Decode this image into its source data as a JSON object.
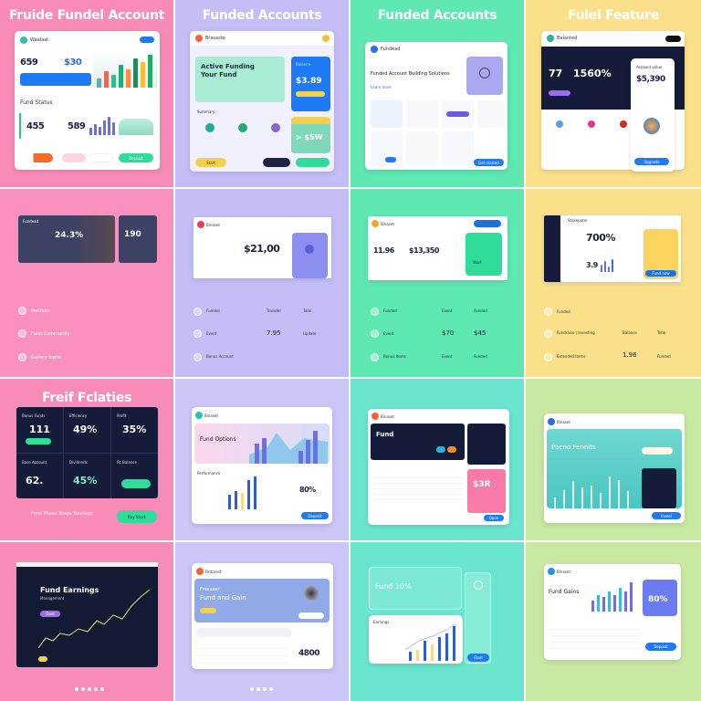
{
  "colors": {
    "pink": "#f98bb9",
    "lavender": "#c4bef7",
    "mint": "#5fe8b2",
    "yellow": "#fbe08c",
    "teal": "#6ae6cf",
    "lime": "#c9e8a2",
    "navy": "#141c3a",
    "blue": "#1f7bf5"
  },
  "t1": {
    "title": "Fruide Fundel Account",
    "brand": "Waalaat",
    "v1": "659",
    "v2": "$30",
    "section": "Fund Status",
    "s1": "455",
    "s2": "589",
    "btn": "Deposit"
  },
  "t2": {
    "title": "Funded Accounts",
    "brand": "Brasacte",
    "hero1": "Active Funding",
    "hero2": "Your Fund",
    "blue_label": "Balance",
    "blue_value": "$3.89",
    "green_value": "> $5W",
    "section": "Summary",
    "btn": "Start"
  },
  "t3": {
    "title": "Funded Accounts",
    "brand": "Fundead",
    "heading": "Funded Account Building Solutions",
    "link": "Learn more",
    "btn": "Get started"
  },
  "t4": {
    "title": "Fulel Feature",
    "brand": "Balanted",
    "v1": "77",
    "v2": "1560%",
    "panel_label": "Account value",
    "panel_value": "$5,390",
    "btn": "Upgrade"
  },
  "t5": {
    "brand": "Fundead",
    "v1": "24.3%",
    "v2": "190",
    "items": [
      "Portfolio",
      "Fund Community",
      "Gallery Items"
    ]
  },
  "t6": {
    "brand": "Binaset",
    "v1": "$21,00",
    "rows": [
      {
        "l": "Funded",
        "a": "Transfer",
        "b": "Total"
      },
      {
        "l": "Event",
        "a": "7.95",
        "b": "Update"
      },
      {
        "l": "Bonus Account",
        "a": "",
        "b": ""
      }
    ]
  },
  "t7": {
    "brand": "Binaset",
    "v1": "11.96",
    "v2": "$13,350",
    "btn": "Start",
    "rows": [
      {
        "l": "Funded",
        "a": "Event",
        "b": "Funded"
      },
      {
        "l": "Event",
        "a": "$70",
        "b": "$45"
      },
      {
        "l": "Bonus Items",
        "a": "Event",
        "b": "Funded"
      }
    ]
  },
  "t8": {
    "brand": "Stakepoter",
    "v1": "700%",
    "v2": "3.9",
    "btn": "Fund now",
    "rows": [
      {
        "l": "Funded",
        "a": "",
        "b": ""
      },
      {
        "l": "Fundraise | Investing",
        "a": "Balance",
        "b": "Total"
      },
      {
        "l": "Extended Items",
        "a": "1.96",
        "b": "Funded"
      }
    ]
  },
  "t9": {
    "title": "Freif Fclaties",
    "labels": [
      "Bonus Funds",
      "Efficiency",
      "Profit"
    ],
    "v": [
      "111",
      "49%",
      "35%",
      "62.",
      "45%"
    ],
    "labels2": [
      "Base Account",
      "Dividends",
      "Fit Balance"
    ],
    "footer": "Fund Phase Stage Strategy",
    "btn": "Buy Stock"
  },
  "t10": {
    "brand": "Binaset",
    "hero": "Fund Options",
    "v1": "80%",
    "section": "Performance",
    "btn": "Deposit"
  },
  "t11": {
    "brand": "Binaset",
    "hero": "Fund",
    "v1": "$3R",
    "btn": "Open"
  },
  "t12": {
    "brand": "Binaset",
    "hero": "Paeno Fennits",
    "btn": "Invest"
  },
  "t13": {
    "hero": "Fund Earnings",
    "sub": "Management",
    "btn": "Start"
  },
  "t14": {
    "brand": "Fintarest",
    "hero1": "Freeaser",
    "hero2": "Fund and Gain",
    "v1": "4800",
    "btn": "Join"
  },
  "t15": {
    "hero": "Fund 10%",
    "section": "Earnings",
    "btn": "Start"
  },
  "t16": {
    "brand": "Binaset",
    "section": "Fund Gains",
    "v1": "80%",
    "btn": "Deposit"
  }
}
